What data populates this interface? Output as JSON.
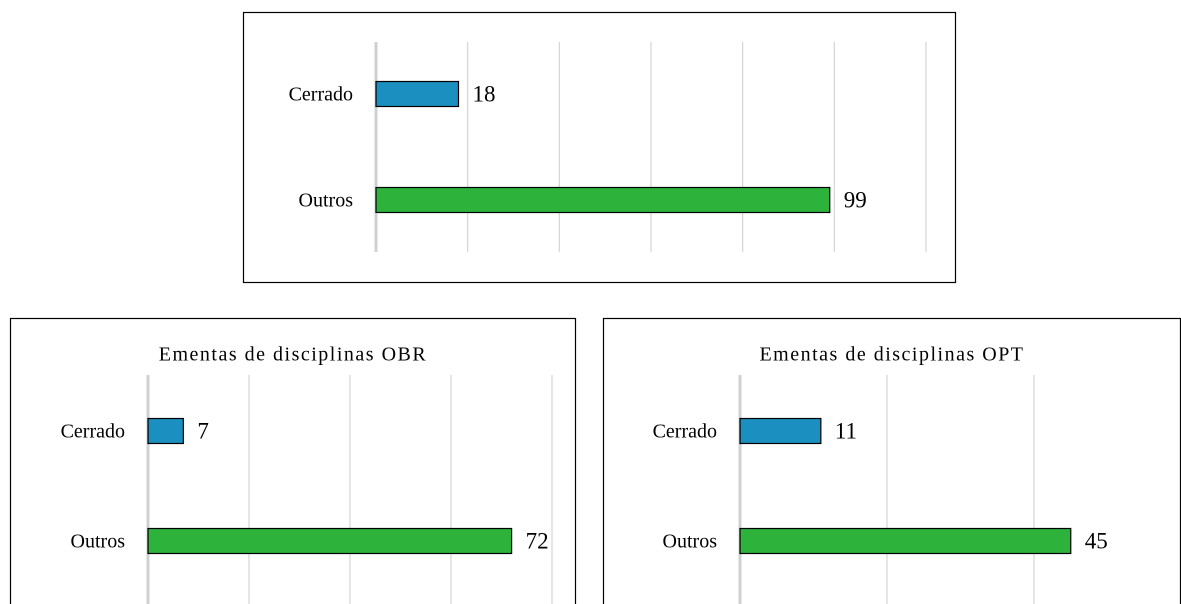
{
  "chart_data": [
    {
      "type": "bar",
      "orientation": "horizontal",
      "categories": [
        "Cerrado",
        "Outros"
      ],
      "values": [
        18,
        99
      ],
      "colors": [
        "#1a8fc0",
        "#2db33c"
      ],
      "xlim": [
        0,
        120
      ],
      "xticks": [
        0,
        20,
        40,
        60,
        80,
        100,
        120
      ],
      "grid": true
    },
    {
      "type": "bar",
      "orientation": "horizontal",
      "title": "Ementas de disciplinas OBR",
      "categories": [
        "Cerrado",
        "Outros"
      ],
      "values": [
        7,
        72
      ],
      "colors": [
        "#1a8fc0",
        "#2db33c"
      ],
      "xlim": [
        0,
        80
      ],
      "xticks": [
        0,
        20,
        40,
        60,
        80
      ],
      "grid": true
    },
    {
      "type": "bar",
      "orientation": "horizontal",
      "title": "Ementas de disciplinas OPT",
      "categories": [
        "Cerrado",
        "Outros"
      ],
      "values": [
        11,
        45
      ],
      "colors": [
        "#1a8fc0",
        "#2db33c"
      ],
      "xlim": [
        0,
        60
      ],
      "xticks": [
        0,
        20,
        40
      ],
      "grid": true
    }
  ]
}
